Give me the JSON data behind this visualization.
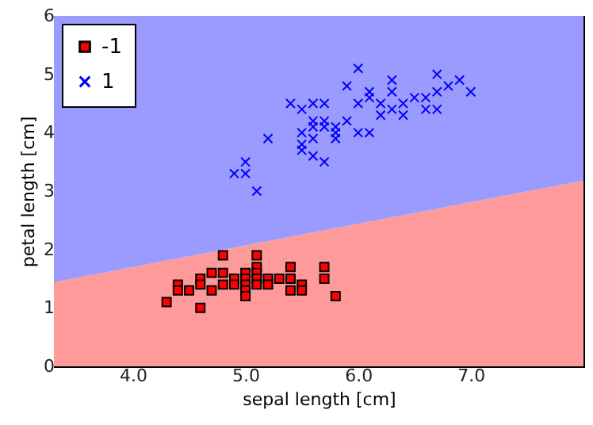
{
  "chart_data": {
    "type": "scatter",
    "xlabel": "sepal length [cm]",
    "ylabel": "petal length [cm]",
    "xlim": [
      3.3,
      8.0
    ],
    "ylim": [
      0,
      6
    ],
    "xticks": [
      {
        "value": 4,
        "label": "4.0"
      },
      {
        "value": 5,
        "label": "5.0"
      },
      {
        "value": 6,
        "label": "6.0"
      },
      {
        "value": 7,
        "label": "7.0"
      }
    ],
    "yticks": [
      0,
      1,
      2,
      3,
      4,
      5,
      6
    ],
    "grid": false,
    "legend": "top left",
    "stacked": true,
    "series": [
      {
        "type": "area",
        "color": "#ff9a9a",
        "x": [
          3.3,
          8.0
        ],
        "values": [
          1.44,
          3.18
        ]
      },
      {
        "type": "area",
        "color": "#9a9aff",
        "x": [
          3.3,
          8.0
        ],
        "values": [
          4.56,
          2.82
        ]
      },
      {
        "name": "-1",
        "color": "#ff0000",
        "marker": "square",
        "x": [
          4.8,
          5.1,
          5.1,
          5.1,
          5.1,
          5.1,
          5.0,
          5.0,
          5.0,
          5.0,
          5.0,
          5.4,
          5.7,
          4.7,
          4.8,
          4.6,
          4.6,
          4.9,
          4.9,
          5.2,
          5.2,
          5.3,
          5.4,
          5.7,
          4.4,
          4.4,
          4.8,
          4.5,
          4.7,
          5.4,
          5.5,
          5.5,
          5.8,
          4.3,
          4.6
        ],
        "values": [
          1.9,
          1.9,
          1.7,
          1.6,
          1.5,
          1.4,
          1.6,
          1.5,
          1.4,
          1.3,
          1.2,
          1.7,
          1.7,
          1.6,
          1.6,
          1.5,
          1.4,
          1.5,
          1.4,
          1.5,
          1.4,
          1.5,
          1.5,
          1.5,
          1.4,
          1.3,
          1.4,
          1.3,
          1.3,
          1.3,
          1.4,
          1.3,
          1.2,
          1.1,
          1.0
        ]
      },
      {
        "name": "1",
        "color": "#0000ff",
        "marker": "cross",
        "x": [
          6.0,
          5.9,
          6.3,
          6.7,
          6.9,
          6.8,
          7.0,
          6.7,
          6.3,
          6.1,
          6.1,
          6.0,
          6.5,
          6.6,
          6.2,
          6.4,
          6.6,
          6.7,
          6.3,
          6.2,
          6.4,
          5.4,
          5.6,
          5.7,
          5.5,
          5.6,
          5.6,
          5.7,
          5.7,
          5.8,
          5.8,
          5.8,
          5.9,
          6.0,
          6.1,
          5.5,
          5.6,
          5.2,
          5.5,
          5.5,
          5.6,
          5.7,
          5.0,
          4.9,
          5.0,
          5.1
        ],
        "values": [
          5.1,
          4.8,
          4.9,
          5.0,
          4.9,
          4.8,
          4.7,
          4.7,
          4.7,
          4.7,
          4.6,
          4.5,
          4.6,
          4.6,
          4.5,
          4.5,
          4.4,
          4.4,
          4.4,
          4.3,
          4.3,
          4.5,
          4.5,
          4.5,
          4.4,
          4.2,
          4.1,
          4.2,
          4.1,
          4.1,
          4.0,
          3.9,
          4.2,
          4.0,
          4.0,
          4.0,
          3.9,
          3.9,
          3.8,
          3.7,
          3.6,
          3.5,
          3.5,
          3.3,
          3.3,
          3.0
        ]
      }
    ]
  }
}
